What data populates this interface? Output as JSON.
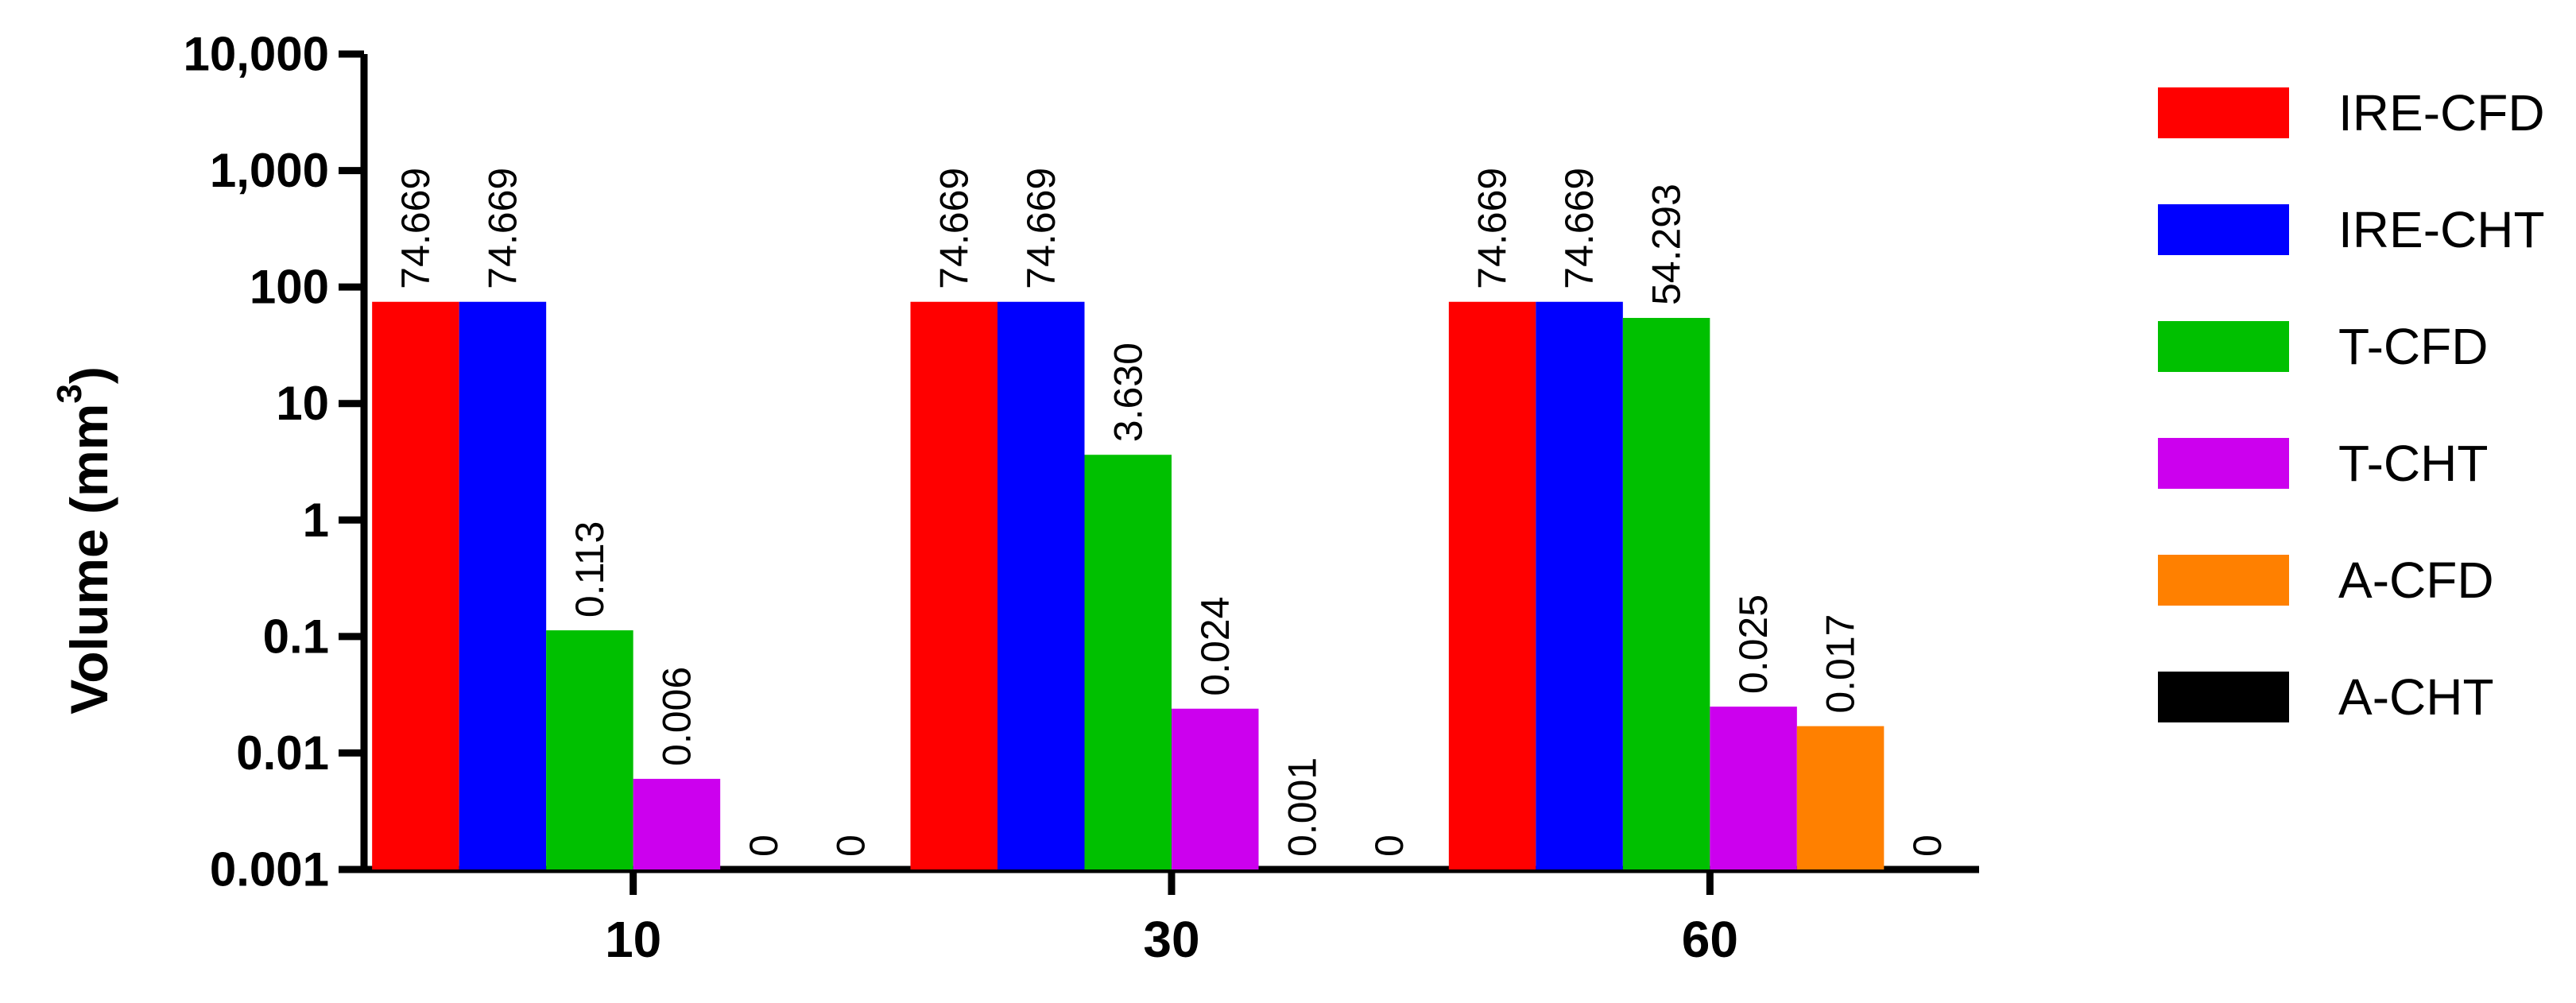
{
  "chart_data": {
    "type": "bar",
    "categories": [
      "10",
      "30",
      "60"
    ],
    "series": [
      {
        "name": "IRE-CFD",
        "color": "#ff0000",
        "values": [
          74.669,
          74.669,
          74.669
        ],
        "labels": [
          "74.669",
          "74.669",
          "74.669"
        ]
      },
      {
        "name": "IRE-CHT",
        "color": "#0000ff",
        "values": [
          74.669,
          74.669,
          74.669
        ],
        "labels": [
          "74.669",
          "74.669",
          "74.669"
        ]
      },
      {
        "name": "T-CFD",
        "color": "#00c000",
        "values": [
          0.113,
          3.63,
          54.293
        ],
        "labels": [
          "0.113",
          "3.630",
          "54.293"
        ]
      },
      {
        "name": "T-CHT",
        "color": "#cc00ee",
        "values": [
          0.006,
          0.024,
          0.025
        ],
        "labels": [
          "0.006",
          "0.024",
          "0.025"
        ]
      },
      {
        "name": "A-CFD",
        "color": "#ff8000",
        "values": [
          0,
          0.001,
          0.017
        ],
        "labels": [
          "0",
          "0.001",
          "0.017"
        ]
      },
      {
        "name": "A-CHT",
        "color": "#000000",
        "values": [
          0,
          0,
          0
        ],
        "labels": [
          "0",
          "0",
          "0"
        ]
      }
    ],
    "ylabel": "Volume (mm",
    "ylabel_sup": "3",
    "ylabel_close": ")",
    "yscale": "log",
    "ylim": [
      0.001,
      10000
    ],
    "yticks": [
      0.001,
      0.01,
      0.1,
      1,
      10,
      100,
      1000,
      10000
    ],
    "ytick_labels": [
      "0.001",
      "0.01",
      "0.1",
      "1",
      "10",
      "100",
      "1,000",
      "10,000"
    ],
    "grid": false,
    "legend": "right"
  }
}
